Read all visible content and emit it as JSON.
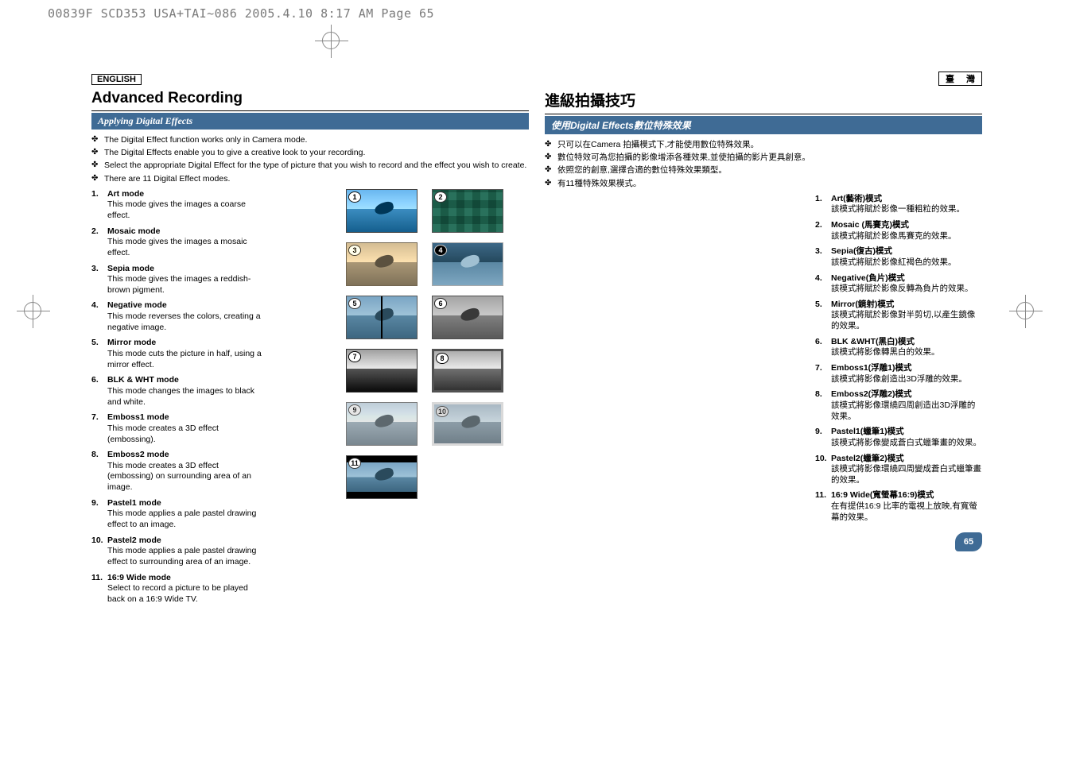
{
  "header_dotted": "00839F SCD353 USA+TAI~086  2005.4.10  8:17 AM  Page 65",
  "page_number": "65",
  "en": {
    "lang": "ENGLISH",
    "title": "Advanced Recording",
    "subsection": "Applying Digital Effects",
    "bullets": [
      "The Digital Effect function works only in Camera mode.",
      "The Digital Effects enable you to give a creative look to your recording.",
      "Select the appropriate Digital Effect for the type of picture that you wish to record and the effect you wish to create.",
      "There are 11 Digital Effect modes."
    ],
    "modes": [
      {
        "n": "1.",
        "t": "Art mode",
        "d": "This mode gives the images a coarse effect."
      },
      {
        "n": "2.",
        "t": "Mosaic mode",
        "d": "This mode gives the images a mosaic effect."
      },
      {
        "n": "3.",
        "t": "Sepia mode",
        "d": "This mode gives the images a reddish-brown pigment."
      },
      {
        "n": "4.",
        "t": "Negative mode",
        "d": "This mode reverses the colors, creating a negative image."
      },
      {
        "n": "5.",
        "t": "Mirror mode",
        "d": "This mode cuts the picture in half, using a mirror effect."
      },
      {
        "n": "6.",
        "t": "BLK & WHT mode",
        "d": "This mode changes the images to black and white."
      },
      {
        "n": "7.",
        "t": "Emboss1 mode",
        "d": "This mode creates a 3D effect (embossing)."
      },
      {
        "n": "8.",
        "t": "Emboss2 mode",
        "d": "This mode creates a 3D effect (embossing) on surrounding area of an image."
      },
      {
        "n": "9.",
        "t": "Pastel1 mode",
        "d": "This mode applies a pale pastel drawing effect to an image."
      },
      {
        "n": "10.",
        "t": "Pastel2 mode",
        "d": "This mode applies a pale pastel drawing effect to surrounding area of an image."
      },
      {
        "n": "11.",
        "t": "16:9 Wide mode",
        "d": "Select to record a picture to be played back on a 16:9 Wide TV."
      }
    ]
  },
  "zh": {
    "lang": "臺 灣",
    "title": "進級拍攝技巧",
    "subsection": "使用Digital Effects數位特殊效果",
    "bullets": [
      "只可以在Camera 拍攝模式下,才能使用數位特殊效果。",
      "數位特效可為您拍攝的影像增添各種效果,並使拍攝的影片更具創意。",
      "依照您的創意,選擇合適的數位特殊效果類型。",
      "有11種特殊效果模式。"
    ],
    "modes": [
      {
        "n": "1.",
        "t": "Art(藝術)模式",
        "d": "該模式將賦於影像一種粗粒的效果。"
      },
      {
        "n": "2.",
        "t": "Mosaic (馬賽克)模式",
        "d": "該模式將賦於影像馬賽克的效果。"
      },
      {
        "n": "3.",
        "t": "Sepia(復古)模式",
        "d": "該模式將賦於影像紅褐色的效果。"
      },
      {
        "n": "4.",
        "t": "Negative(負片)模式",
        "d": "該模式將賦於影像反轉為負片的效果。"
      },
      {
        "n": "5.",
        "t": "Mirror(鏡射)模式",
        "d": "該模式將賦於影像對半剪切,以產生鏡像的效果。"
      },
      {
        "n": "6.",
        "t": "BLK &WHT(黑白)模式",
        "d": "該模式將影像轉黑白的效果。"
      },
      {
        "n": "7.",
        "t": "Emboss1(浮雕1)模式",
        "d": "該模式將影像創造出3D浮雕的效果。"
      },
      {
        "n": "8.",
        "t": "Emboss2(浮雕2)模式",
        "d": "該模式將影像環繞四周創造出3D浮雕的效果。"
      },
      {
        "n": "9.",
        "t": "Pastel1(蠟筆1)模式",
        "d": "該模式將影像變成蒼白式蠟筆畫的效果。"
      },
      {
        "n": "10.",
        "t": "Pastel2(蠟筆2)模式",
        "d": "該模式將影像環繞四周變成蒼白式蠟筆畫的效果。"
      },
      {
        "n": "11.",
        "t": "16:9 Wide(寬螢幕16:9)模式",
        "d": "在有提供16:9 比率的電視上放映,有寬螢幕的效果。"
      }
    ]
  },
  "thumbs": [
    {
      "n": "1",
      "cls": "art"
    },
    {
      "n": "2",
      "cls": "mosaic"
    },
    {
      "n": "3",
      "cls": "sepia"
    },
    {
      "n": "4",
      "cls": "negative"
    },
    {
      "n": "5",
      "cls": "mirror"
    },
    {
      "n": "6",
      "cls": "bw"
    },
    {
      "n": "7",
      "cls": "emboss1"
    },
    {
      "n": "8",
      "cls": "emboss2"
    },
    {
      "n": "9",
      "cls": "pastel1"
    },
    {
      "n": "10",
      "cls": "pastel2"
    },
    {
      "n": "11",
      "cls": "wide"
    }
  ],
  "colors": {
    "banner": "#3f6b95",
    "text": "#000000",
    "header_gray": "#7a7a7a"
  }
}
